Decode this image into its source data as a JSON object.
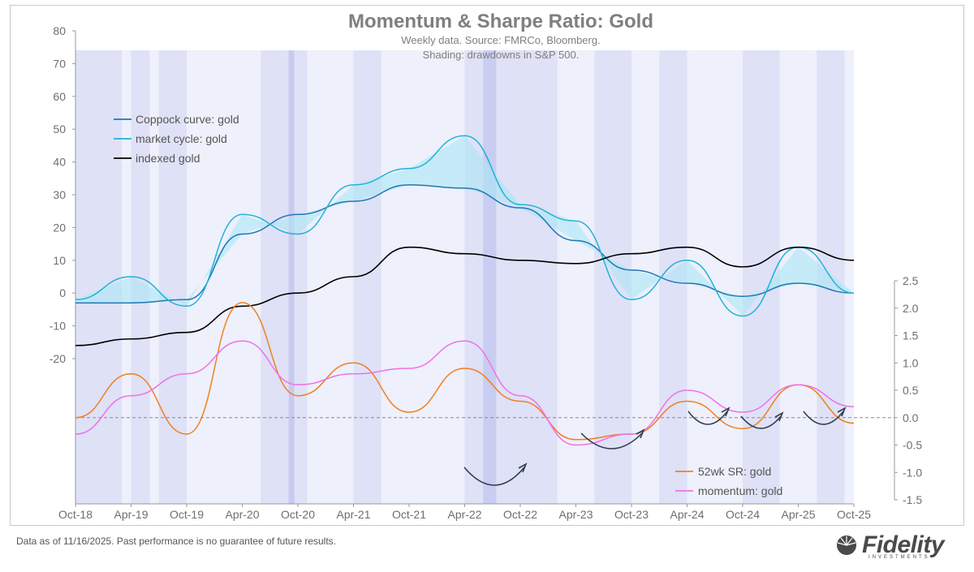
{
  "chart_data": {
    "type": "line",
    "title": "Momentum & Sharpe Ratio: Gold",
    "subtitle_1": "Weekly data.  Source: FMRCo, Bloomberg.",
    "subtitle_2": "Shading: drawdowns in S&P 500.",
    "x_tick_labels": [
      "Oct-18",
      "Apr-19",
      "Oct-19",
      "Apr-20",
      "Oct-20",
      "Apr-21",
      "Oct-21",
      "Apr-22",
      "Oct-22",
      "Apr-23",
      "Oct-23",
      "Apr-24",
      "Oct-24",
      "Apr-25",
      "Oct-25"
    ],
    "left_axis": {
      "ylim": [
        -20,
        80
      ],
      "ticks": [
        "80",
        "70",
        "60",
        "50",
        "40",
        "30",
        "20",
        "10",
        "0",
        "-10",
        "-20"
      ]
    },
    "right_axis": {
      "ylim": [
        -1.5,
        2.5
      ],
      "ticks": [
        "2.5",
        "2.0",
        "1.5",
        "1.0",
        "0.5",
        "0.0",
        "-0.5",
        "-1.0",
        "-1.5"
      ]
    },
    "legend_left": {
      "placement": "upper-left"
    },
    "legend_right": {
      "placement": "lower-right"
    },
    "series": [
      {
        "name": "Coppock curve: gold",
        "axis": "left",
        "color": "#1f77b4",
        "x": [
          0,
          6,
          12,
          18,
          24,
          30,
          36,
          42,
          48,
          54,
          60,
          66,
          72,
          78,
          84
        ],
        "values": [
          -3,
          -3,
          -2,
          18,
          24,
          28,
          33,
          32,
          26,
          16,
          7,
          3,
          -1,
          3,
          0
        ]
      },
      {
        "name": "market cycle: gold",
        "axis": "left",
        "color": "#1fb5d6",
        "x": [
          0,
          6,
          12,
          18,
          24,
          30,
          36,
          42,
          48,
          54,
          60,
          66,
          72,
          78,
          84
        ],
        "values": [
          -2,
          5,
          -4,
          24,
          18,
          33,
          38,
          48,
          27,
          22,
          -2,
          10,
          -7,
          14,
          0
        ]
      },
      {
        "name": "indexed gold",
        "axis": "left",
        "color": "#000000",
        "x": [
          0,
          6,
          12,
          18,
          24,
          30,
          36,
          42,
          48,
          54,
          60,
          66,
          72,
          78,
          84
        ],
        "values": [
          -16,
          -14,
          -12,
          -4,
          0,
          5,
          14,
          12,
          10,
          9,
          12,
          14,
          8,
          14,
          10
        ]
      },
      {
        "name": "52wk SR: gold",
        "axis": "right",
        "color": "#f07f1f",
        "x": [
          0,
          6,
          12,
          18,
          24,
          30,
          36,
          42,
          48,
          54,
          60,
          66,
          72,
          78,
          84
        ],
        "values": [
          0,
          0.8,
          -0.3,
          2.1,
          0.4,
          1.0,
          0.1,
          0.9,
          0.3,
          -0.4,
          -0.3,
          0.3,
          -0.2,
          0.6,
          -0.1
        ]
      },
      {
        "name": "momentum: gold",
        "axis": "right",
        "color": "#ee72e6",
        "x": [
          0,
          6,
          12,
          18,
          24,
          30,
          36,
          42,
          48,
          54,
          60,
          66,
          72,
          78,
          84
        ],
        "values": [
          -0.3,
          0.4,
          0.8,
          1.4,
          0.6,
          0.8,
          0.9,
          1.4,
          0.4,
          -0.5,
          -0.3,
          0.5,
          0.1,
          0.6,
          0.2
        ]
      }
    ],
    "grid": false,
    "zero_line_right": 0.0
  },
  "footnote": "Data as of 11/16/2025. Past performance is no guarantee of future results.",
  "logo": {
    "word": "Fidelity",
    "sub": "INVESTMENTS"
  }
}
